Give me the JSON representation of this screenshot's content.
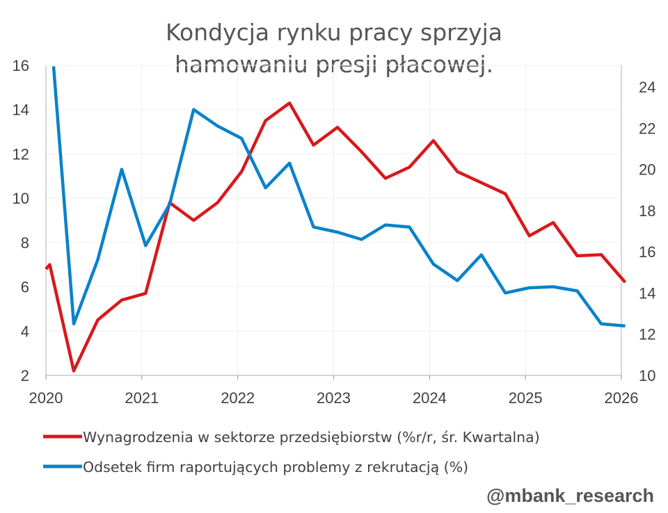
{
  "chart_data": {
    "type": "line",
    "title": "Kondycja rynku pracy sprzyja hamowaniu presji płacowej.",
    "title_lines": [
      "Kondycja rynku pracy sprzyja",
      "hamowaniu presji płacowej."
    ],
    "x_axis": {
      "range": [
        2020.0,
        2026.0
      ],
      "ticks": [
        2020,
        2021,
        2022,
        2023,
        2024,
        2025,
        2026
      ],
      "tick_labels": [
        "2020",
        "2021",
        "2022",
        "2023",
        "2024",
        "2025",
        "2026"
      ]
    },
    "y_left": {
      "range": [
        2,
        16
      ],
      "ticks": [
        2,
        4,
        6,
        8,
        10,
        12,
        14,
        16
      ],
      "tick_labels": [
        "2",
        "4",
        "6",
        "8",
        "10",
        "12",
        "14",
        "16"
      ]
    },
    "y_right": {
      "range": [
        10,
        25
      ],
      "ticks": [
        10,
        12,
        14,
        16,
        18,
        20,
        22,
        24
      ],
      "tick_labels": [
        "10",
        "12",
        "14",
        "16",
        "18",
        "20",
        "22",
        "24"
      ]
    },
    "grid": true,
    "legend_position": "bottom",
    "series": [
      {
        "name": "Wynagrodzenia w sektorze przedsiębiorstw (%r/r, śr. Kwartalna)",
        "axis": "left",
        "color": "#d7191c",
        "x": [
          2020.0,
          2020.04,
          2020.29,
          2020.54,
          2020.79,
          2021.04,
          2021.29,
          2021.54,
          2021.79,
          2022.04,
          2022.29,
          2022.54,
          2022.79,
          2023.04,
          2023.29,
          2023.54,
          2023.79,
          2024.04,
          2024.29,
          2024.54,
          2024.79,
          2025.04,
          2025.29,
          2025.54,
          2025.79,
          2026.04
        ],
        "values": [
          6.8,
          7.0,
          2.2,
          4.5,
          5.4,
          5.7,
          9.8,
          9.0,
          9.8,
          11.2,
          13.5,
          14.3,
          12.4,
          13.2,
          12.1,
          10.9,
          11.4,
          12.6,
          11.2,
          10.7,
          10.2,
          8.3,
          8.9,
          7.4,
          7.45,
          6.2
        ]
      },
      {
        "name": "Odsetek firm raportujących problemy z rekrutacją (%)",
        "axis": "right",
        "color": "#0a82c9",
        "x": [
          2020.08,
          2020.29,
          2020.54,
          2020.79,
          2021.04,
          2021.29,
          2021.54,
          2021.79,
          2022.04,
          2022.29,
          2022.54,
          2022.79,
          2023.04,
          2023.29,
          2023.54,
          2023.79,
          2024.04,
          2024.29,
          2024.54,
          2024.79,
          2025.04,
          2025.29,
          2025.54,
          2025.79,
          2026.04
        ],
        "values": [
          25.0,
          12.5,
          15.6,
          20.0,
          16.3,
          18.3,
          22.9,
          22.1,
          21.5,
          19.1,
          20.3,
          17.2,
          16.95,
          16.6,
          17.3,
          17.2,
          15.4,
          14.6,
          15.85,
          14.0,
          14.25,
          14.3,
          14.1,
          12.5,
          12.4
        ]
      }
    ]
  },
  "watermark": "@mbank_research"
}
